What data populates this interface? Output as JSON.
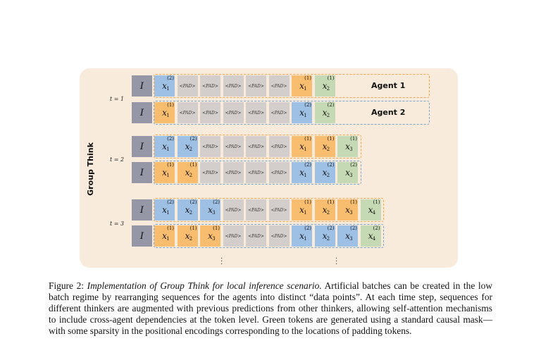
{
  "diagram": {
    "side_label": "Group Think",
    "instruction_token": "I",
    "pad_token": "<PAD>",
    "agent_labels": [
      "Agent 1",
      "Agent 2"
    ],
    "timesteps": [
      {
        "label": "t = 1",
        "rows": [
          {
            "tokens": [
              [
                "x",
                "1",
                "2",
                "blue"
              ],
              [
                "PAD"
              ],
              [
                "PAD"
              ],
              [
                "PAD"
              ],
              [
                "PAD"
              ],
              [
                "PAD"
              ],
              [
                "x",
                "1",
                "1",
                "orange"
              ],
              [
                "x",
                "2",
                "1",
                "green"
              ]
            ],
            "agent": "Agent 1"
          },
          {
            "tokens": [
              [
                "x",
                "1",
                "1",
                "orange"
              ],
              [
                "PAD"
              ],
              [
                "PAD"
              ],
              [
                "PAD"
              ],
              [
                "PAD"
              ],
              [
                "PAD"
              ],
              [
                "x",
                "1",
                "2",
                "blue"
              ],
              [
                "x",
                "2",
                "2",
                "green"
              ]
            ],
            "agent": "Agent 2"
          }
        ]
      },
      {
        "label": "t = 2",
        "rows": [
          {
            "tokens": [
              [
                "x",
                "1",
                "2",
                "blue"
              ],
              [
                "x",
                "2",
                "2",
                "blue"
              ],
              [
                "PAD"
              ],
              [
                "PAD"
              ],
              [
                "PAD"
              ],
              [
                "PAD"
              ],
              [
                "x",
                "1",
                "1",
                "orange"
              ],
              [
                "x",
                "2",
                "1",
                "orange"
              ],
              [
                "x",
                "3",
                "1",
                "green"
              ]
            ]
          },
          {
            "tokens": [
              [
                "x",
                "1",
                "1",
                "orange"
              ],
              [
                "x",
                "2",
                "1",
                "orange"
              ],
              [
                "PAD"
              ],
              [
                "PAD"
              ],
              [
                "PAD"
              ],
              [
                "PAD"
              ],
              [
                "x",
                "1",
                "2",
                "blue"
              ],
              [
                "x",
                "2",
                "2",
                "blue"
              ],
              [
                "x",
                "3",
                "2",
                "green"
              ]
            ]
          }
        ]
      },
      {
        "label": "t = 3",
        "rows": [
          {
            "tokens": [
              [
                "x",
                "1",
                "2",
                "blue"
              ],
              [
                "x",
                "2",
                "2",
                "blue"
              ],
              [
                "x",
                "3",
                "2",
                "blue"
              ],
              [
                "PAD"
              ],
              [
                "PAD"
              ],
              [
                "PAD"
              ],
              [
                "x",
                "1",
                "1",
                "orange"
              ],
              [
                "x",
                "2",
                "1",
                "orange"
              ],
              [
                "x",
                "3",
                "1",
                "orange"
              ],
              [
                "x",
                "4",
                "1",
                "green"
              ]
            ]
          },
          {
            "tokens": [
              [
                "x",
                "1",
                "1",
                "orange"
              ],
              [
                "x",
                "2",
                "1",
                "orange"
              ],
              [
                "x",
                "3",
                "1",
                "orange"
              ],
              [
                "PAD"
              ],
              [
                "PAD"
              ],
              [
                "PAD"
              ],
              [
                "x",
                "1",
                "2",
                "blue"
              ],
              [
                "x",
                "2",
                "2",
                "blue"
              ],
              [
                "x",
                "3",
                "2",
                "blue"
              ],
              [
                "x",
                "4",
                "2",
                "green"
              ]
            ]
          }
        ]
      }
    ],
    "colors": {
      "blue": "#9fc0e5",
      "orange": "#f8bd6e",
      "green": "#c5dab4",
      "pad": "#d3cecb",
      "instruction": "#9597a6",
      "panel": "#f8ebdb"
    }
  },
  "caption": {
    "prefix": "Figure 2: ",
    "title": "Implementation of Group Think for local inference scenario.",
    "body": " Artificial batches can be created in the low batch regime by rearranging sequences for the agents into distinct “data points”. At each time step, sequences for different thinkers are augmented with previous predictions from other thinkers, allowing self-attention mechanisms to include cross-agent dependencies at the token level. Green tokens are generated using a standard causal mask—with some sparsity in the positional encodings corresponding to the locations of padding tokens."
  }
}
